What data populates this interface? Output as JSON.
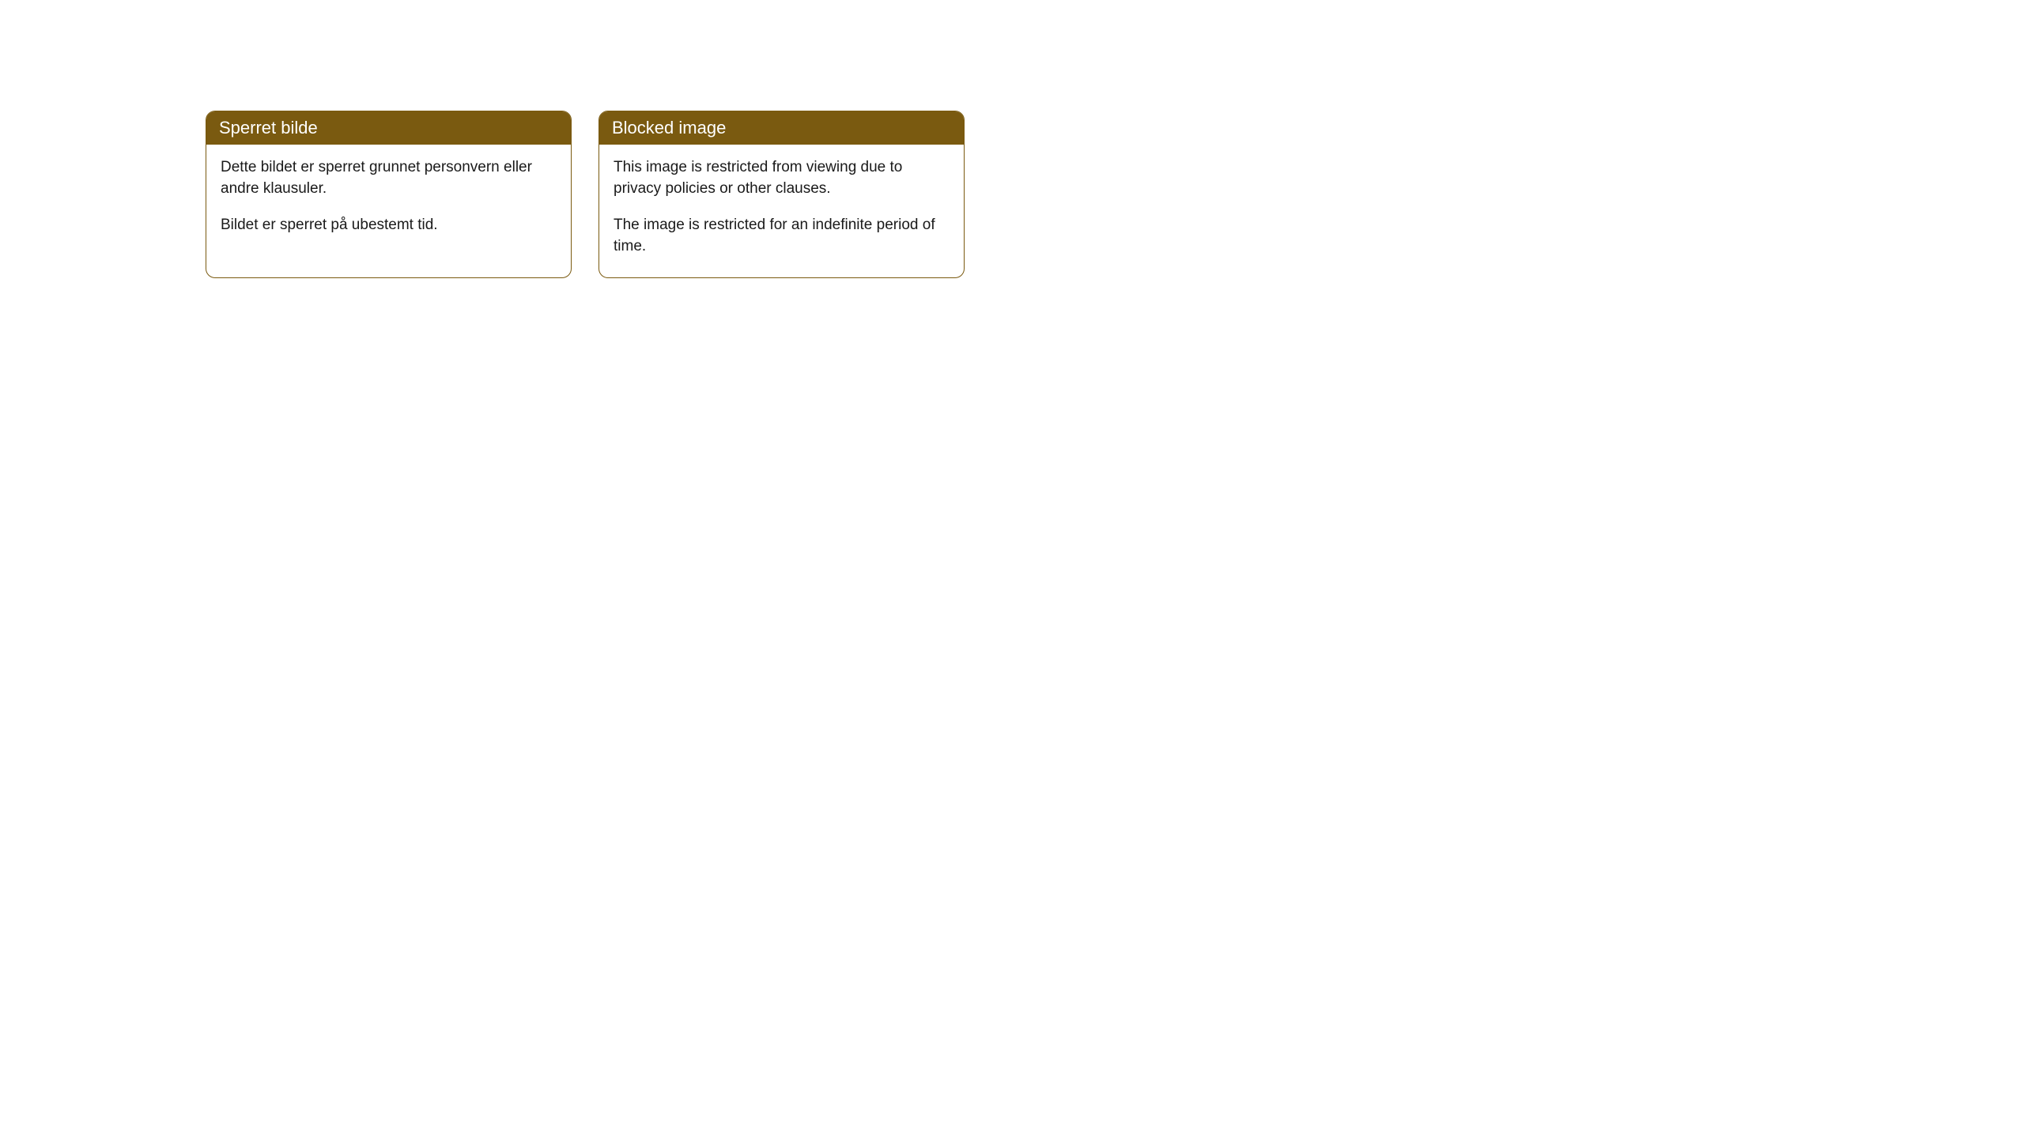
{
  "cards": [
    {
      "title": "Sperret bilde",
      "paragraph1": "Dette bildet er sperret grunnet personvern eller andre klausuler.",
      "paragraph2": "Bildet er sperret på ubestemt tid."
    },
    {
      "title": "Blocked image",
      "paragraph1": "This image is restricted from viewing due to privacy policies or other clauses.",
      "paragraph2": "The image is restricted for an indefinite period of time."
    }
  ],
  "styling": {
    "header_background": "#7a5a10",
    "header_text_color": "#ffffff",
    "border_color": "#7a5a10",
    "body_background": "#ffffff",
    "body_text_color": "#1a1a1a",
    "border_radius": 12,
    "header_fontsize": 22,
    "body_fontsize": 19
  }
}
